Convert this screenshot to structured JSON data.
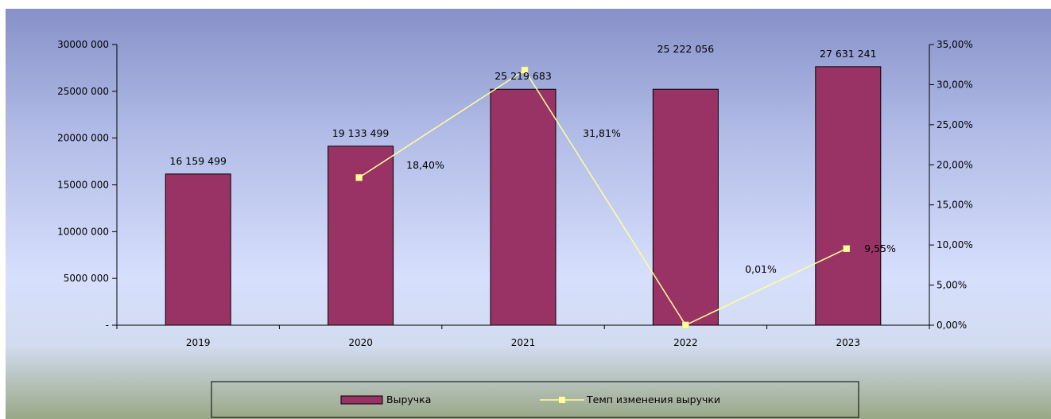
{
  "chart_data": {
    "type": "bar",
    "categories": [
      "2019",
      "2020",
      "2021",
      "2022",
      "2023"
    ],
    "series": [
      {
        "name": "Выручка",
        "type": "bar",
        "axis": "left",
        "values": [
          16159499,
          19133499,
          25219683,
          25222056,
          27631241
        ],
        "labels": [
          "16 159 499",
          "19 133 499",
          "25 219 683",
          "25 222 056",
          "27 631 241"
        ]
      },
      {
        "name": "Темп изменения выручки",
        "type": "line",
        "axis": "right",
        "values": [
          null,
          18.4,
          31.81,
          0.01,
          9.55
        ],
        "labels": [
          "",
          "18,40%",
          "31,81%",
          "0,01%",
          "9,55%"
        ]
      }
    ],
    "y_left": {
      "ylim": [
        0,
        30000000
      ],
      "ticks": [
        0,
        5000000,
        10000000,
        15000000,
        20000000,
        25000000,
        30000000
      ],
      "tick_labels": [
        "-",
        "5000 000",
        "10000 000",
        "15000 000",
        "20000 000",
        "25000 000",
        "30000 000"
      ]
    },
    "y_right": {
      "ylim": [
        0,
        35
      ],
      "ticks": [
        0,
        5,
        10,
        15,
        20,
        25,
        30,
        35
      ],
      "tick_labels": [
        "0,00%",
        "5,00%",
        "10,00%",
        "15,00%",
        "20,00%",
        "25,00%",
        "30,00%",
        "35,00%"
      ]
    },
    "legend": {
      "position": "bottom"
    },
    "grid": false,
    "colors": {
      "bar_fill": "#993366",
      "bar_stroke": "#000000",
      "line": "#ffff99",
      "bg_top": "#8a96cc",
      "bg_mid": "#d6dffb",
      "bg_bottom": "#9aaa88"
    }
  }
}
